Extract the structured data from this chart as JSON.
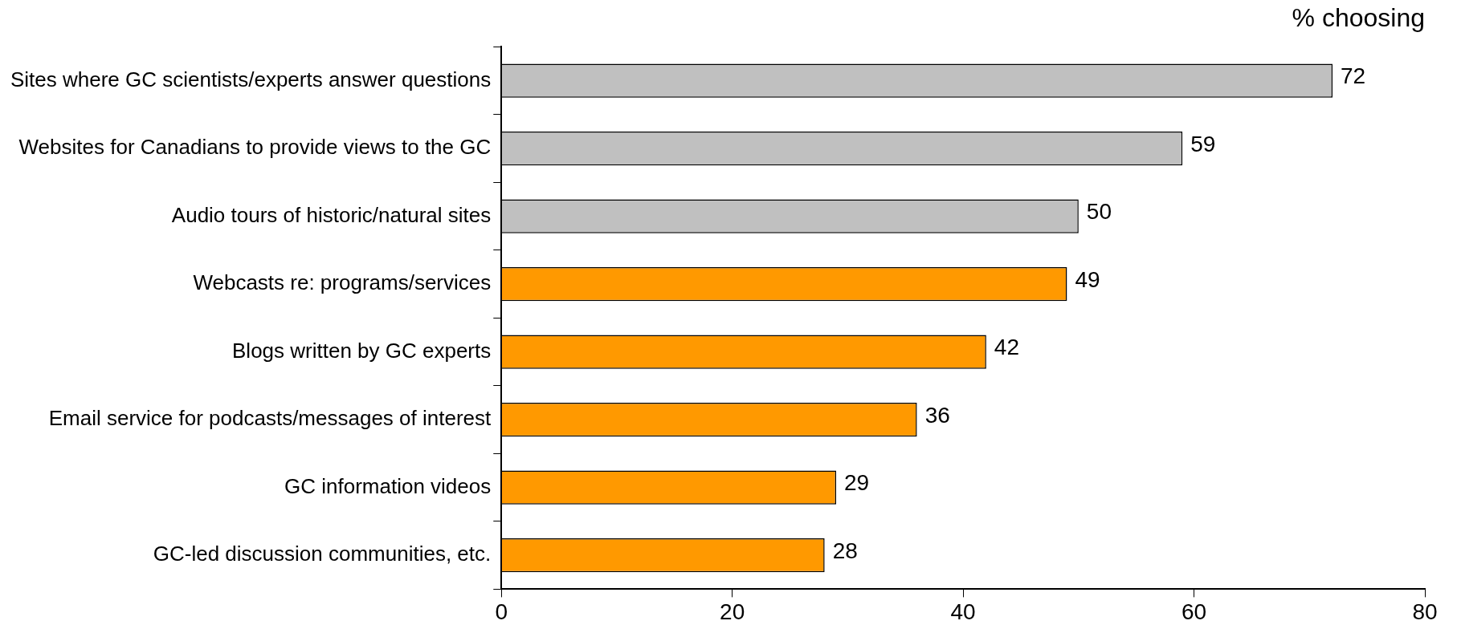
{
  "chart_data": {
    "type": "bar",
    "orientation": "horizontal",
    "title": "% choosing",
    "categories": [
      "Sites where GC scientists/experts answer questions",
      "Websites for Canadians to provide views to the GC",
      "Audio tours of historic/natural sites",
      "Webcasts re: programs/services",
      "Blogs written by GC experts",
      "Email service for podcasts/messages of interest",
      "GC information videos",
      "GC-led discussion communities, etc."
    ],
    "values": [
      72,
      59,
      50,
      49,
      42,
      36,
      29,
      28
    ],
    "colors": [
      "#c0c0c0",
      "#c0c0c0",
      "#c0c0c0",
      "#ff9900",
      "#ff9900",
      "#ff9900",
      "#ff9900",
      "#ff9900"
    ],
    "xlim": [
      0,
      80
    ],
    "xticks": [
      0,
      20,
      40,
      60,
      80
    ],
    "data_labels": true,
    "grid": false,
    "legend": false
  }
}
